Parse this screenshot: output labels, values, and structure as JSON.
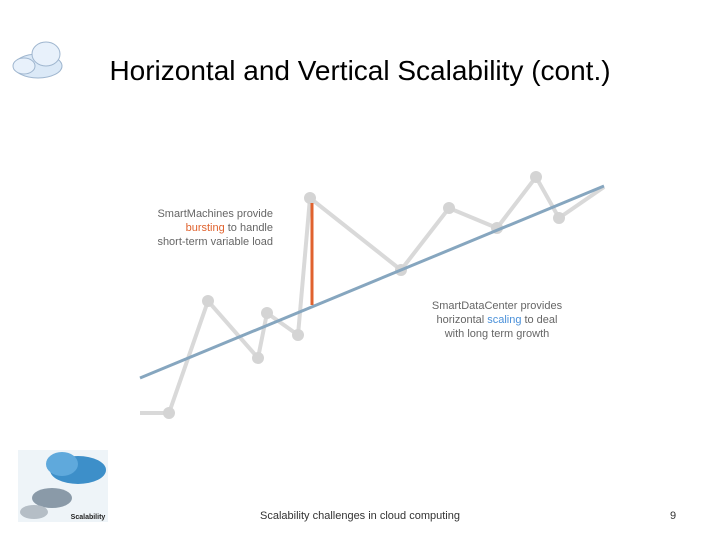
{
  "title": "Horizontal and Vertical Scalability (cont.)",
  "left_note": {
    "line1": "SmartMachines provide",
    "line2": {
      "em": "bursting",
      "rest": "to handle"
    },
    "line3": "short-term variable load"
  },
  "right_note": {
    "line1": "SmartDataCenter provides",
    "line2": {
      "pre": "horizontal",
      "em": "scaling",
      "post": "to deal"
    },
    "line3": "with long term growth"
  },
  "logo_text": "Scalability",
  "footer": "Scalability challenges in cloud computing",
  "page_number": "9"
}
